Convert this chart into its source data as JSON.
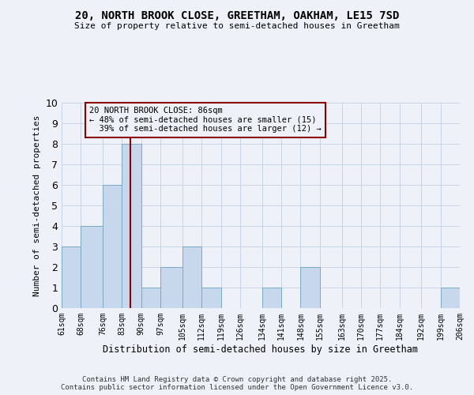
{
  "title": "20, NORTH BROOK CLOSE, GREETHAM, OAKHAM, LE15 7SD",
  "subtitle": "Size of property relative to semi-detached houses in Greetham",
  "xlabel": "Distribution of semi-detached houses by size in Greetham",
  "ylabel": "Number of semi-detached properties",
  "bins": [
    61,
    68,
    76,
    83,
    90,
    97,
    105,
    112,
    119,
    126,
    134,
    141,
    148,
    155,
    163,
    170,
    177,
    184,
    192,
    199,
    206
  ],
  "counts": [
    3,
    4,
    6,
    8,
    1,
    2,
    3,
    1,
    0,
    0,
    1,
    0,
    2,
    0,
    0,
    0,
    0,
    0,
    0,
    1
  ],
  "subject_value": 86,
  "subject_label": "20 NORTH BROOK CLOSE: 86sqm",
  "pct_smaller": 48,
  "pct_larger": 39,
  "n_smaller": 15,
  "n_larger": 12,
  "bar_color": "#c8d8ec",
  "bar_edge_color": "#7aaac8",
  "vline_color": "#8b0000",
  "annotation_box_color": "#8b0000",
  "background_color": "#eef2f8",
  "grid_color": "#c8d4e4",
  "ylim": [
    0,
    10
  ],
  "yticks": [
    0,
    1,
    2,
    3,
    4,
    5,
    6,
    7,
    8,
    9,
    10
  ],
  "footer": "Contains HM Land Registry data © Crown copyright and database right 2025.\nContains public sector information licensed under the Open Government Licence v3.0.",
  "tick_labels": [
    "61sqm",
    "68sqm",
    "76sqm",
    "83sqm",
    "90sqm",
    "97sqm",
    "105sqm",
    "112sqm",
    "119sqm",
    "126sqm",
    "134sqm",
    "141sqm",
    "148sqm",
    "155sqm",
    "163sqm",
    "170sqm",
    "177sqm",
    "184sqm",
    "192sqm",
    "199sqm",
    "206sqm"
  ]
}
